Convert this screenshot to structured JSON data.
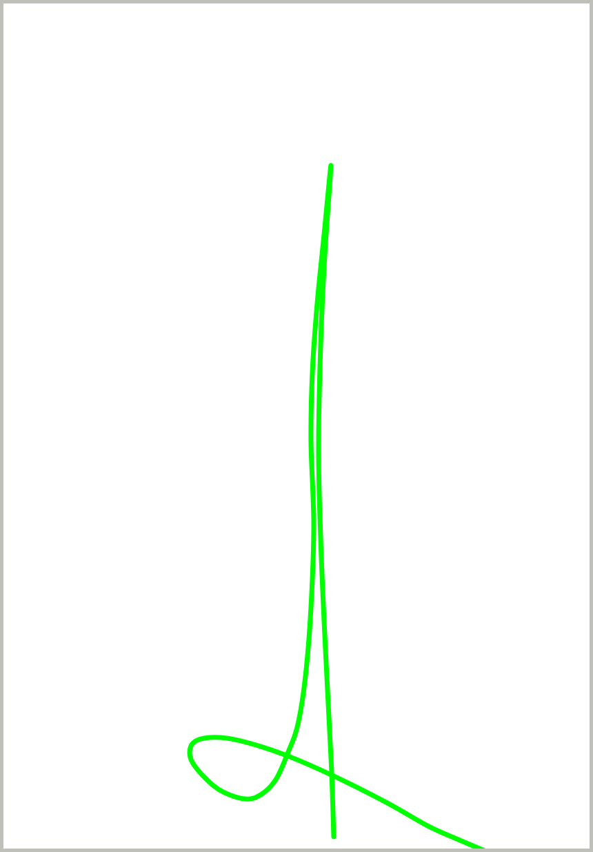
{
  "canvas": {
    "background_color": "#ffffff",
    "border_color": "#c0c0bb"
  },
  "stroke": {
    "color": "#00ff00",
    "tool": "freehand-pen"
  }
}
